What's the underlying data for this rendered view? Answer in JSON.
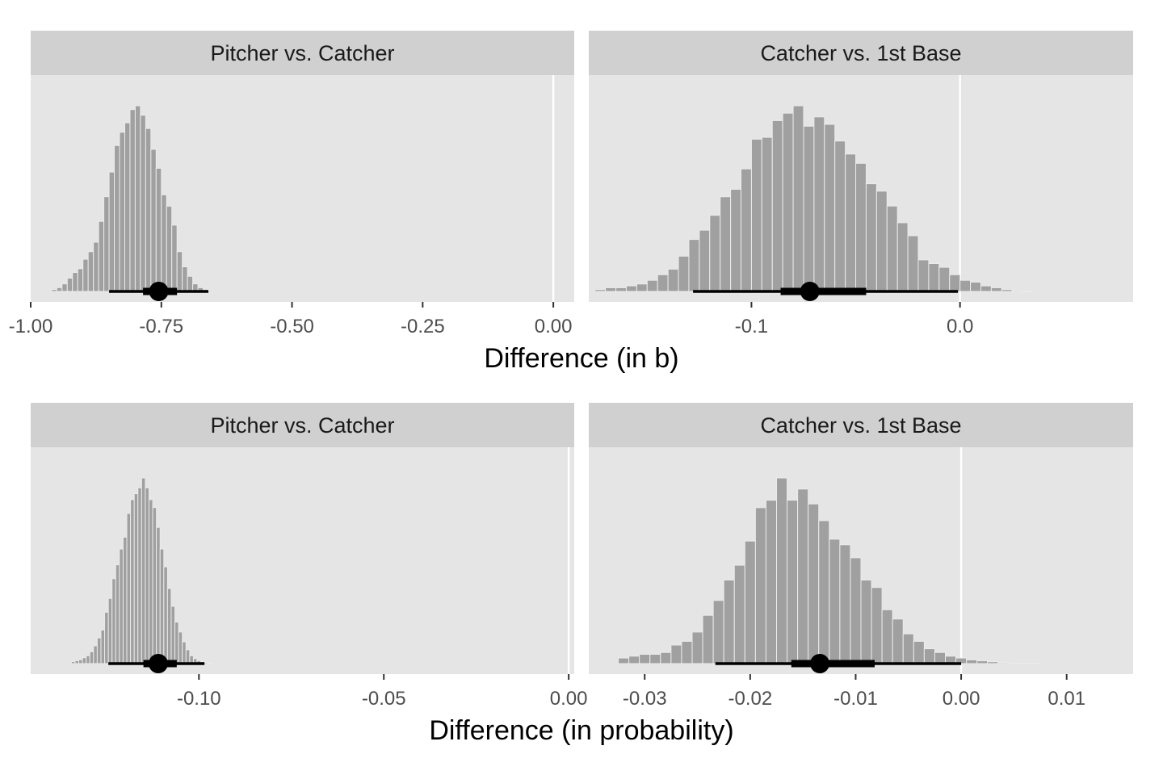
{
  "chart_data": [
    {
      "type": "bar",
      "subtype": "histogram-with-interval",
      "title": "Pitcher vs. Catcher",
      "xlabel": "Difference (in b)",
      "xlim": [
        -1.0,
        0.04
      ],
      "ticks": [
        -1.0,
        -0.75,
        -0.5,
        -0.25,
        0.0
      ],
      "tick_labels": [
        "-1.00",
        "-0.75",
        "-0.50",
        "-0.25",
        "0.00"
      ],
      "bin_start": -0.97,
      "bin_width": 0.01,
      "heights": [
        0.005,
        0.01,
        0.02,
        0.04,
        0.07,
        0.1,
        0.12,
        0.17,
        0.21,
        0.26,
        0.37,
        0.5,
        0.63,
        0.77,
        0.84,
        0.89,
        0.96,
        0.98,
        0.93,
        0.86,
        0.75,
        0.65,
        0.51,
        0.45,
        0.35,
        0.21,
        0.13,
        0.08,
        0.04,
        0.02,
        0.01,
        0.005
      ],
      "median": -0.755,
      "interval_66": [
        -0.785,
        -0.72
      ],
      "interval_95": [
        -0.85,
        -0.66
      ],
      "reference_line": 0.0
    },
    {
      "type": "bar",
      "subtype": "histogram-with-interval",
      "title": "Catcher vs. 1st Base",
      "xlabel": "Difference (in b)",
      "xlim": [
        -0.178,
        0.083
      ],
      "ticks": [
        -0.1,
        0.0
      ],
      "tick_labels": [
        "-0.1",
        "0.0"
      ],
      "bin_start": -0.175,
      "bin_width": 0.005,
      "heights": [
        0.01,
        0.02,
        0.02,
        0.03,
        0.04,
        0.06,
        0.09,
        0.12,
        0.19,
        0.28,
        0.33,
        0.41,
        0.51,
        0.55,
        0.66,
        0.82,
        0.83,
        0.92,
        0.96,
        1.0,
        0.89,
        0.94,
        0.9,
        0.81,
        0.74,
        0.69,
        0.58,
        0.54,
        0.46,
        0.37,
        0.3,
        0.17,
        0.15,
        0.13,
        0.09,
        0.06,
        0.05,
        0.03,
        0.02,
        0.01,
        0.005,
        0.002
      ],
      "median": -0.072,
      "interval_66": [
        -0.086,
        -0.045
      ],
      "interval_95": [
        -0.128,
        -0.001
      ],
      "reference_line": 0.0
    },
    {
      "type": "bar",
      "subtype": "histogram-with-interval",
      "title": "Pitcher vs. Catcher",
      "xlabel": "Difference (in probability)",
      "xlim": [
        -0.1455,
        0.0015
      ],
      "ticks": [
        -0.1,
        -0.05,
        0.0
      ],
      "tick_labels": [
        "-0.10",
        "-0.05",
        "0.00"
      ],
      "bin_start": -0.1345,
      "bin_width": 0.001,
      "heights": [
        0.01,
        0.015,
        0.02,
        0.03,
        0.04,
        0.06,
        0.09,
        0.13,
        0.17,
        0.26,
        0.33,
        0.43,
        0.5,
        0.58,
        0.64,
        0.76,
        0.83,
        0.86,
        0.89,
        0.94,
        0.89,
        0.83,
        0.79,
        0.69,
        0.58,
        0.49,
        0.38,
        0.29,
        0.21,
        0.16,
        0.11,
        0.07,
        0.04,
        0.025,
        0.015,
        0.01,
        0.005,
        0.003
      ],
      "median": -0.111,
      "interval_66": [
        -0.115,
        -0.106
      ],
      "interval_95": [
        -0.1245,
        -0.0985
      ],
      "reference_line": 0.0
    },
    {
      "type": "bar",
      "subtype": "histogram-with-interval",
      "title": "Catcher vs. 1st Base",
      "xlabel": "Difference (in probability)",
      "xlim": [
        -0.0353,
        0.0163
      ],
      "ticks": [
        -0.03,
        -0.02,
        -0.01,
        0.0,
        0.01
      ],
      "tick_labels": [
        "-0.03",
        "-0.02",
        "-0.01",
        "0.00",
        "0.01"
      ],
      "bin_start": -0.0325,
      "bin_width": 0.001,
      "heights": [
        0.03,
        0.04,
        0.05,
        0.05,
        0.06,
        0.1,
        0.12,
        0.17,
        0.26,
        0.34,
        0.45,
        0.53,
        0.66,
        0.84,
        0.88,
        1.0,
        0.88,
        0.94,
        0.86,
        0.77,
        0.67,
        0.64,
        0.57,
        0.45,
        0.41,
        0.29,
        0.24,
        0.16,
        0.12,
        0.08,
        0.06,
        0.04,
        0.03,
        0.02,
        0.015,
        0.01,
        0.005,
        0.002,
        0.001,
        0.001
      ],
      "median": -0.0134,
      "interval_66": [
        -0.0161,
        -0.0082
      ],
      "interval_95": [
        -0.0233,
        0.0
      ],
      "reference_line": 0.0
    }
  ],
  "axis_titles": [
    "Difference (in b)",
    "Difference (in probability)"
  ],
  "colors": {
    "panel_bg": "#e5e5e5",
    "strip_bg": "#d0d0d0",
    "bar_fill": "#a0a0a0",
    "bar_edge": "#ebebeb",
    "interval": "#000000",
    "reference_line": "#ffffff"
  }
}
